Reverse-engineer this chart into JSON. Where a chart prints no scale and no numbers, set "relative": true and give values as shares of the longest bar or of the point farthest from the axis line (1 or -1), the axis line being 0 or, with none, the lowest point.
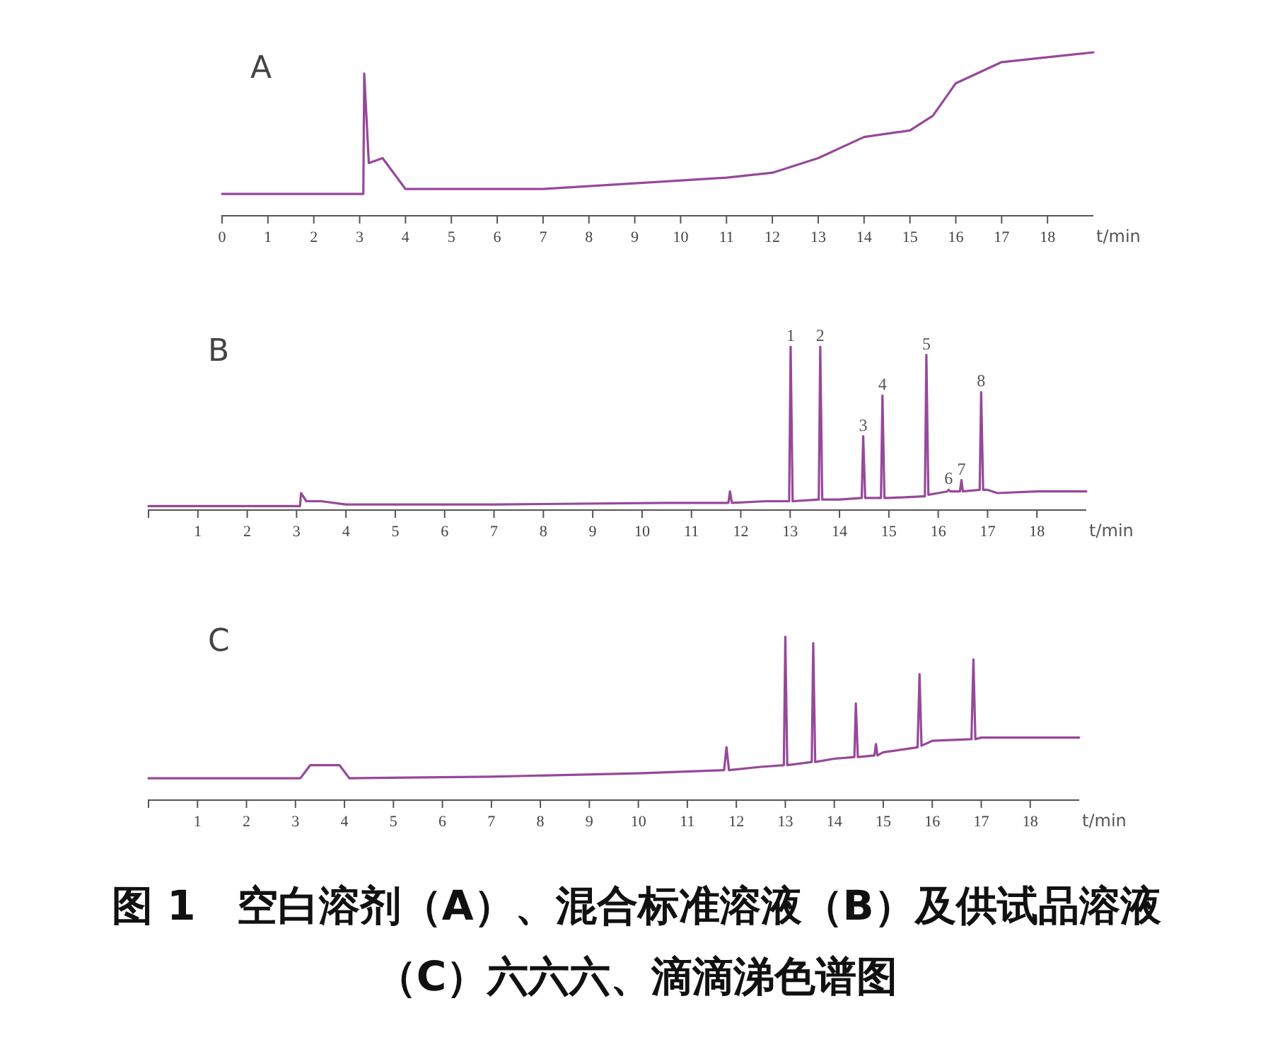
{
  "chart_data": [
    {
      "type": "line",
      "title": "A",
      "xlabel": "t/min",
      "relative": true,
      "xlim": [
        0,
        19
      ],
      "xticks": [
        0,
        1,
        2,
        3,
        4,
        5,
        6,
        7,
        8,
        9,
        10,
        11,
        12,
        13,
        14,
        15,
        16,
        17,
        18
      ],
      "series": [
        {
          "color": "#96489a",
          "x": [
            0,
            3.0,
            3.08,
            3.1,
            3.2,
            3.5,
            4.0,
            7,
            11,
            12,
            13,
            14,
            15,
            15.5,
            16,
            17,
            18,
            19
          ],
          "values": [
            0.13,
            0.13,
            0.13,
            0.87,
            0.32,
            0.35,
            0.16,
            0.16,
            0.23,
            0.26,
            0.35,
            0.48,
            0.52,
            0.61,
            0.81,
            0.94,
            0.97,
            1.0
          ]
        }
      ]
    },
    {
      "type": "line",
      "title": "B",
      "xlabel": "t/min",
      "relative": true,
      "xlim": [
        0,
        19
      ],
      "xticks": [
        {
          "value": 0,
          "label": null
        },
        1,
        2,
        3,
        4,
        5,
        6,
        7,
        8,
        9,
        10,
        11,
        12,
        13,
        14,
        15,
        16,
        17,
        18
      ],
      "series": [
        {
          "color": "#96489a",
          "x": [
            0,
            3.0,
            3.07,
            3.09,
            3.2,
            3.5,
            4.0,
            7,
            10.5,
            11.75,
            11.78,
            11.82,
            12.5,
            12.98,
            13.01,
            13.05,
            13.58,
            13.61,
            13.65,
            14.0,
            14.45,
            14.48,
            14.52,
            14.84,
            14.87,
            14.91,
            15.0,
            15.7,
            15.73,
            15.76,
            15.8,
            16.0,
            16.18,
            16.21,
            16.25,
            16.44,
            16.47,
            16.5,
            16.84,
            16.87,
            16.91,
            17.0,
            17.2,
            18,
            19
          ],
          "values": [
            0.02,
            0.02,
            0.02,
            0.1,
            0.05,
            0.05,
            0.03,
            0.03,
            0.04,
            0.04,
            0.11,
            0.04,
            0.05,
            0.05,
            1,
            0.05,
            0.06,
            1,
            0.06,
            0.06,
            0.07,
            0.45,
            0.07,
            0.07,
            0.7,
            0.07,
            0.07,
            0.08,
            0.08,
            0.95,
            0.09,
            0.1,
            0.11,
            0.12,
            0.11,
            0.11,
            0.18,
            0.11,
            0.12,
            0.72,
            0.12,
            0.12,
            0.1,
            0.11,
            0.11
          ]
        }
      ],
      "annotations": [
        {
          "text": "1",
          "x": 13.01,
          "y": 1
        },
        {
          "text": "2",
          "x": 13.61,
          "y": 1
        },
        {
          "text": "3",
          "x": 14.48,
          "y": 0.45
        },
        {
          "text": "4",
          "x": 14.87,
          "y": 0.7
        },
        {
          "text": "5",
          "x": 15.76,
          "y": 0.95
        },
        {
          "text": "6",
          "x": 16.21,
          "y": 0.12
        },
        {
          "text": "7",
          "x": 16.47,
          "y": 0.18
        },
        {
          "text": "8",
          "x": 16.87,
          "y": 0.72
        }
      ]
    },
    {
      "type": "line",
      "title": "C",
      "xlabel": "t/min",
      "relative": true,
      "xlim": [
        0,
        19
      ],
      "xticks": [
        {
          "value": 0,
          "label": null
        },
        1,
        2,
        3,
        4,
        5,
        6,
        7,
        8,
        9,
        10,
        11,
        12,
        13,
        14,
        15,
        16,
        17,
        18
      ],
      "series": [
        {
          "color": "#96489a",
          "x": [
            0,
            3.1,
            3.3,
            3.9,
            4.1,
            7,
            10,
            11.75,
            11.8,
            11.85,
            12.5,
            12.97,
            13.0,
            13.04,
            13.54,
            13.57,
            13.61,
            14.0,
            14.41,
            14.44,
            14.48,
            14.82,
            14.85,
            14.88,
            15.0,
            15.7,
            15.74,
            15.78,
            16.0,
            16.8,
            16.84,
            16.88,
            17.0,
            18,
            19
          ],
          "values": [
            0.13,
            0.13,
            0.21,
            0.21,
            0.13,
            0.14,
            0.16,
            0.18,
            0.32,
            0.18,
            0.2,
            0.21,
            1,
            0.21,
            0.23,
            0.96,
            0.23,
            0.25,
            0.26,
            0.59,
            0.26,
            0.27,
            0.34,
            0.27,
            0.29,
            0.32,
            0.77,
            0.33,
            0.36,
            0.37,
            0.86,
            0.37,
            0.38,
            0.38,
            0.38
          ]
        }
      ],
      "annotations": [
        "图 1　空白溶剂（A）、混合标准溶液（B）及供试品溶液（C）六六六、滴滴涕色谱图"
      ]
    }
  ]
}
